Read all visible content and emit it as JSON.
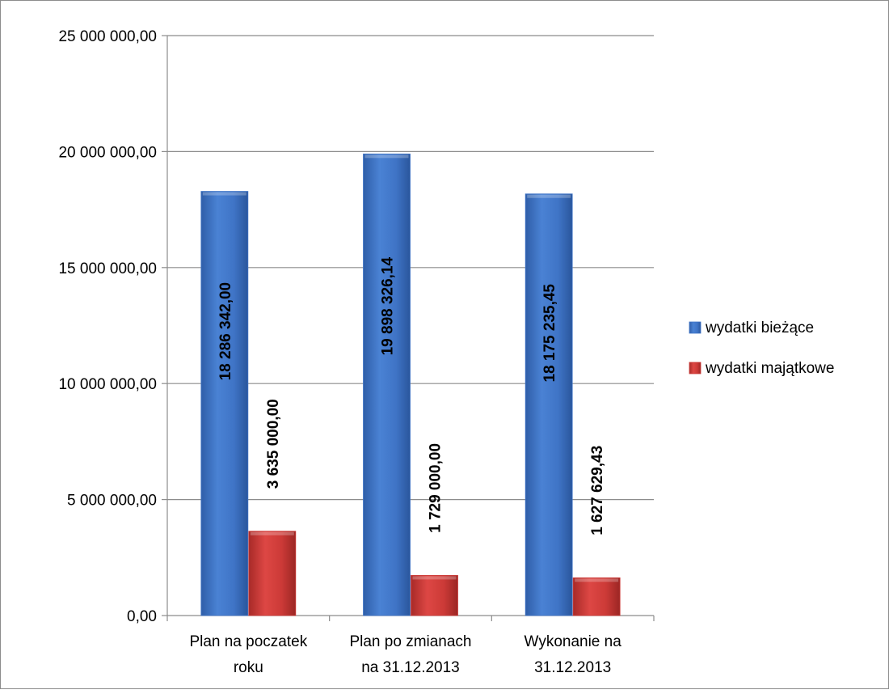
{
  "chart_data": {
    "type": "bar",
    "categories": [
      [
        "Plan na poczatek",
        "roku"
      ],
      [
        "Plan po zmianach",
        "na 31.12.2013"
      ],
      [
        "Wykonanie na",
        "31.12.2013"
      ]
    ],
    "series": [
      {
        "name": "wydatki bieżące",
        "color": "#3f74c6",
        "values": [
          18286342.0,
          19898326.14,
          18175235.45
        ],
        "labels": [
          "18 286 342,00",
          "19 898 326,14",
          "18 175 235,45"
        ]
      },
      {
        "name": "wydatki majątkowe",
        "color": "#cc3a37",
        "values": [
          3635000.0,
          1729000.0,
          1627629.43
        ],
        "labels": [
          "3 635 000,00",
          "1 729 000,00",
          "1 627 629,43"
        ]
      }
    ],
    "ylim": [
      0,
      25000000
    ],
    "yticks": [
      0,
      5000000,
      10000000,
      15000000,
      20000000,
      25000000
    ],
    "ytick_labels": [
      "0,00",
      "5 000 000,00",
      "10 000 000,00",
      "15 000 000,00",
      "20 000 000,00",
      "25 000 000,00"
    ],
    "grid": true,
    "legend": "right"
  }
}
